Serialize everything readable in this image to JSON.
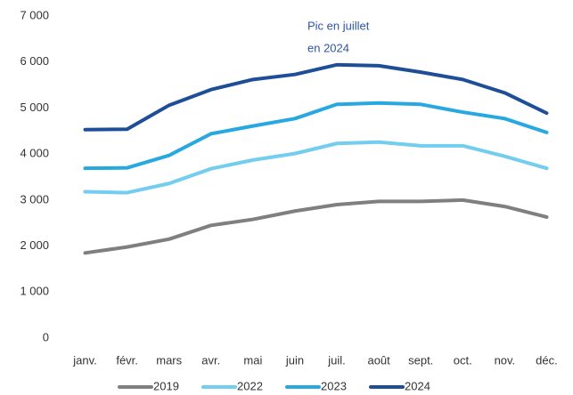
{
  "chart_data": {
    "type": "line",
    "annotation": [
      "Pic en juillet",
      "en 2024"
    ],
    "annotation_color": "#2f55a4",
    "categories": [
      "janv.",
      "févr.",
      "mars",
      "avr.",
      "mai",
      "juin",
      "juil.",
      "août",
      "sept.",
      "oct.",
      "nov.",
      "déc."
    ],
    "series": [
      {
        "name": "2019",
        "color": "#7f7f7f",
        "values": [
          1850,
          1980,
          2150,
          2450,
          2580,
          2760,
          2900,
          2970,
          2970,
          3000,
          2860,
          2630
        ]
      },
      {
        "name": "2022",
        "color": "#72cdef",
        "values": [
          3180,
          3160,
          3360,
          3680,
          3870,
          4010,
          4230,
          4260,
          4180,
          4180,
          3950,
          3690
        ]
      },
      {
        "name": "2023",
        "color": "#27a8e0",
        "values": [
          3690,
          3700,
          3970,
          4440,
          4610,
          4770,
          5080,
          5110,
          5080,
          4910,
          4770,
          4470
        ]
      },
      {
        "name": "2024",
        "color": "#1f4e99",
        "values": [
          4530,
          4540,
          5060,
          5400,
          5620,
          5730,
          5940,
          5920,
          5780,
          5620,
          5330,
          4890
        ]
      }
    ],
    "ylim": [
      0,
      7000
    ],
    "yticks": [
      0,
      {
        "value": 1000,
        "label": "1 000"
      },
      {
        "value": 2000,
        "label": "2 000"
      },
      {
        "value": 3000,
        "label": "3 000"
      },
      {
        "value": 4000,
        "label": "4 000"
      },
      {
        "value": 5000,
        "label": "5 000"
      },
      {
        "value": 6000,
        "label": "6 000"
      },
      {
        "value": 7000,
        "label": "7 000"
      }
    ],
    "grid": false,
    "legend": "bottom"
  }
}
